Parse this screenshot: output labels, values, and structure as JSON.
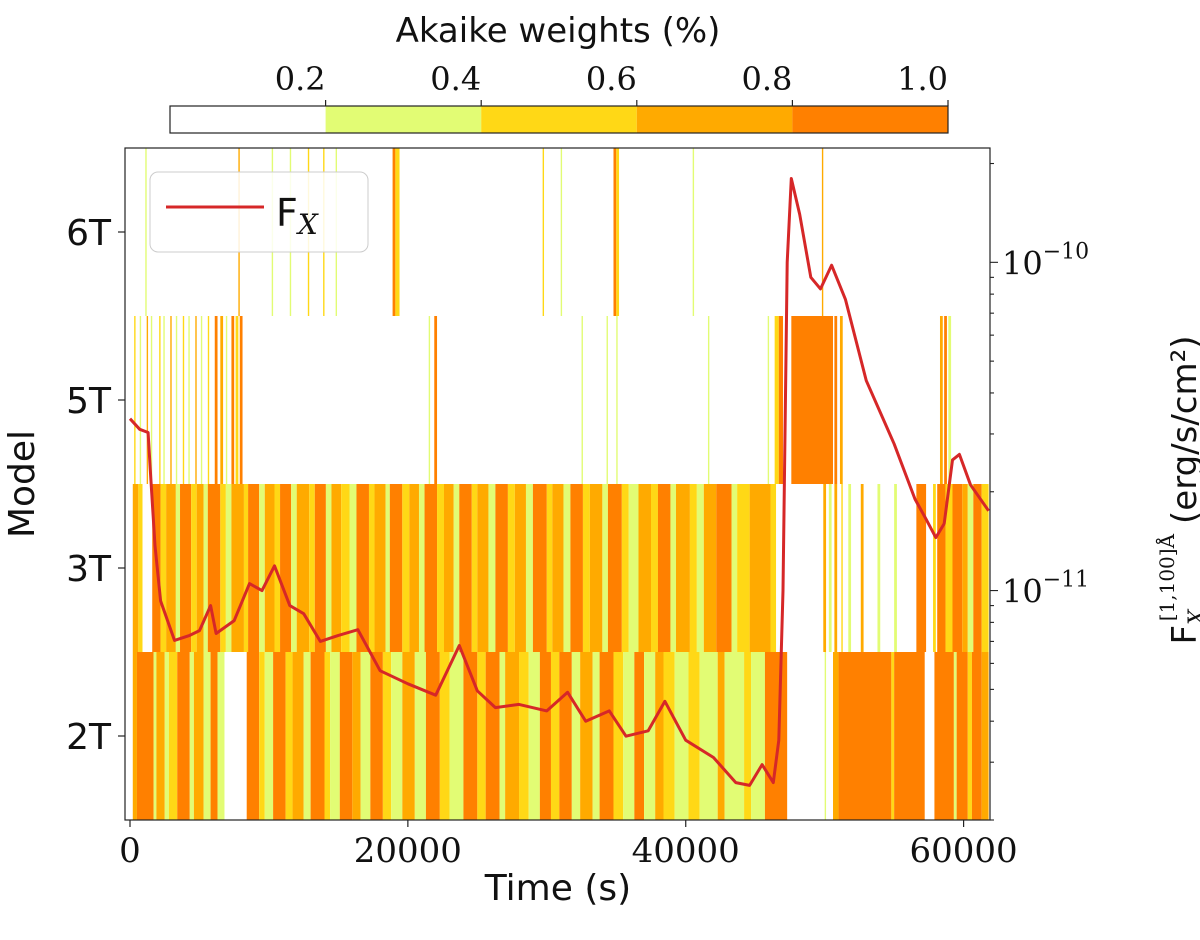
{
  "chart_data": {
    "type": "heatmap",
    "xlabel": "Time (s)",
    "ylabel": "Model",
    "y2label": "F_X^{[1,100]Å} (erg/s/cm²)",
    "y2label_main": "F",
    "y2label_sub": "X",
    "y2label_sup": "[1,100]Å",
    "y2label_units": "(erg/s/cm²)",
    "xlim": [
      -360,
      61900
    ],
    "x_ticks": [
      0,
      20000,
      40000,
      60000
    ],
    "x_tick_labels": [
      "0",
      "20000",
      "40000",
      "60000"
    ],
    "models": [
      "6T",
      "5T",
      "3T",
      "2T"
    ],
    "y2_scale": "log",
    "y2lim": [
      2e-12,
      2.23e-10
    ],
    "y2_ticks": [
      {
        "value": 1e-10,
        "base": "10",
        "exp": "−10"
      },
      {
        "value": 1e-11,
        "base": "10",
        "exp": "−11"
      }
    ],
    "colorbar": {
      "title": "Akaike weights (%)",
      "bounds": [
        0,
        0.2,
        0.4,
        0.6,
        0.8,
        1.0
      ],
      "tick_labels": [
        "0.2",
        "0.4",
        "0.6",
        "0.8",
        "1.0"
      ],
      "colors": [
        "#ffffff",
        "#e2fc74",
        "#ffd816",
        "#ffaa00",
        "#ff8000"
      ],
      "placement": "top"
    },
    "weights": {
      "6T": [
        [
          1100,
          1200,
          0.3
        ],
        [
          7800,
          7900,
          0.7
        ],
        [
          10200,
          10300,
          0.3
        ],
        [
          11500,
          11600,
          0.3
        ],
        [
          12800,
          12900,
          0.5
        ],
        [
          13900,
          14000,
          0.5
        ],
        [
          14800,
          14900,
          0.3
        ],
        [
          18900,
          19100,
          0.9
        ],
        [
          19100,
          19400,
          0.5
        ],
        [
          29700,
          29800,
          0.5
        ],
        [
          31000,
          31100,
          0.3
        ],
        [
          34800,
          35000,
          0.9
        ],
        [
          35000,
          35200,
          0.5
        ],
        [
          40500,
          40600,
          0.3
        ],
        [
          49800,
          49900,
          0.7
        ]
      ],
      "5T": [
        [
          300,
          400,
          0.5
        ],
        [
          700,
          800,
          0.3
        ],
        [
          1200,
          1300,
          0.7
        ],
        [
          1500,
          1600,
          0.3
        ],
        [
          2100,
          2200,
          0.5
        ],
        [
          2400,
          2500,
          0.3
        ],
        [
          2900,
          3000,
          0.7
        ],
        [
          3300,
          3400,
          0.3
        ],
        [
          3800,
          3900,
          0.5
        ],
        [
          4200,
          4300,
          0.3
        ],
        [
          4700,
          4800,
          0.7
        ],
        [
          5100,
          5200,
          0.3
        ],
        [
          5600,
          5700,
          0.5
        ],
        [
          6100,
          6300,
          0.9
        ],
        [
          6500,
          6700,
          0.7
        ],
        [
          6900,
          7000,
          0.3
        ],
        [
          7300,
          7500,
          0.9
        ],
        [
          7600,
          7800,
          0.5
        ],
        [
          7900,
          8100,
          0.9
        ],
        [
          21500,
          21600,
          0.3
        ],
        [
          21900,
          22100,
          0.9
        ],
        [
          32500,
          32600,
          0.3
        ],
        [
          34300,
          34400,
          0.3
        ],
        [
          35000,
          35100,
          0.3
        ],
        [
          41600,
          41700,
          0.3
        ],
        [
          45900,
          46000,
          0.3
        ],
        [
          46400,
          46700,
          0.5
        ],
        [
          46700,
          47000,
          0.9
        ],
        [
          47600,
          50600,
          0.9
        ],
        [
          50700,
          50900,
          0.9
        ],
        [
          51100,
          51300,
          0.7
        ],
        [
          58300,
          58500,
          0.7
        ],
        [
          58600,
          58800,
          0.9
        ],
        [
          58900,
          59100,
          0.3
        ]
      ],
      "3T": [
        [
          200,
          600,
          0.7
        ],
        [
          600,
          900,
          0.5
        ],
        [
          1600,
          2200,
          0.9
        ],
        [
          2200,
          2600,
          0.5
        ],
        [
          2600,
          3300,
          0.7
        ],
        [
          3300,
          3600,
          0.3
        ],
        [
          3600,
          4400,
          0.9
        ],
        [
          4400,
          4800,
          0.5
        ],
        [
          4800,
          5300,
          0.7
        ],
        [
          5300,
          5600,
          0.3
        ],
        [
          5600,
          6500,
          0.9
        ],
        [
          6500,
          6900,
          0.5
        ],
        [
          6900,
          7300,
          0.3
        ],
        [
          7300,
          8200,
          0.7
        ],
        [
          8200,
          8500,
          0.5
        ],
        [
          8500,
          9300,
          0.9
        ],
        [
          9300,
          9700,
          0.3
        ],
        [
          9700,
          10400,
          0.7
        ],
        [
          10400,
          10800,
          0.5
        ],
        [
          10800,
          11600,
          0.9
        ],
        [
          11600,
          12000,
          0.3
        ],
        [
          12000,
          12900,
          0.7
        ],
        [
          12900,
          13300,
          0.5
        ],
        [
          13300,
          14100,
          0.9
        ],
        [
          14100,
          14500,
          0.3
        ],
        [
          14500,
          15200,
          0.7
        ],
        [
          15200,
          15800,
          0.5
        ],
        [
          15800,
          16300,
          0.3
        ],
        [
          16300,
          17200,
          0.9
        ],
        [
          17200,
          17600,
          0.5
        ],
        [
          17600,
          18400,
          0.7
        ],
        [
          18400,
          18700,
          0.3
        ],
        [
          18700,
          19600,
          0.9
        ],
        [
          19600,
          20100,
          0.5
        ],
        [
          20100,
          20800,
          0.7
        ],
        [
          20800,
          21200,
          0.3
        ],
        [
          21200,
          22100,
          0.9
        ],
        [
          22100,
          22600,
          0.5
        ],
        [
          22600,
          23300,
          0.7
        ],
        [
          23300,
          23700,
          0.3
        ],
        [
          23700,
          24600,
          0.9
        ],
        [
          24600,
          25000,
          0.5
        ],
        [
          25000,
          25800,
          0.7
        ],
        [
          25800,
          26300,
          0.3
        ],
        [
          26300,
          27200,
          0.9
        ],
        [
          27200,
          27700,
          0.5
        ],
        [
          27700,
          28500,
          0.7
        ],
        [
          28500,
          29000,
          0.3
        ],
        [
          29000,
          30000,
          0.9
        ],
        [
          30000,
          30400,
          0.5
        ],
        [
          30400,
          31200,
          0.7
        ],
        [
          31200,
          31700,
          0.3
        ],
        [
          31700,
          32600,
          0.9
        ],
        [
          32600,
          33100,
          0.5
        ],
        [
          33100,
          34000,
          0.7
        ],
        [
          34000,
          34400,
          0.3
        ],
        [
          34400,
          35400,
          0.9
        ],
        [
          35400,
          35900,
          0.5
        ],
        [
          35900,
          36600,
          0.3
        ],
        [
          36600,
          37500,
          0.7
        ],
        [
          37500,
          38000,
          0.5
        ],
        [
          38000,
          38900,
          0.9
        ],
        [
          38900,
          39300,
          0.3
        ],
        [
          39300,
          40300,
          0.7
        ],
        [
          40300,
          40800,
          0.5
        ],
        [
          40800,
          41300,
          0.3
        ],
        [
          41300,
          42200,
          0.7
        ],
        [
          42200,
          43300,
          0.9
        ],
        [
          43300,
          43700,
          0.3
        ],
        [
          43700,
          44600,
          0.5
        ],
        [
          44600,
          46100,
          0.7
        ],
        [
          46100,
          46500,
          0.5
        ],
        [
          49900,
          50100,
          0.7
        ],
        [
          50300,
          50500,
          0.3
        ],
        [
          50700,
          50900,
          0.7
        ],
        [
          51200,
          51300,
          0.5
        ],
        [
          51700,
          51900,
          0.3
        ],
        [
          52600,
          52800,
          0.7
        ],
        [
          53800,
          54000,
          0.3
        ],
        [
          55000,
          55200,
          0.3
        ],
        [
          56600,
          57300,
          0.9
        ],
        [
          57800,
          58000,
          0.5
        ],
        [
          58100,
          58700,
          0.9
        ],
        [
          58700,
          59200,
          0.5
        ],
        [
          59200,
          59900,
          0.9
        ],
        [
          59900,
          60300,
          0.7
        ],
        [
          60300,
          60700,
          0.3
        ],
        [
          60700,
          61300,
          0.9
        ],
        [
          61300,
          61800,
          0.5
        ]
      ],
      "2T": [
        [
          200,
          500,
          0.7
        ],
        [
          500,
          1700,
          0.9
        ],
        [
          1700,
          1900,
          0.3
        ],
        [
          1900,
          2500,
          0.7
        ],
        [
          2500,
          2800,
          0.3
        ],
        [
          2800,
          3400,
          0.5
        ],
        [
          3400,
          4300,
          0.9
        ],
        [
          4300,
          4600,
          0.3
        ],
        [
          4600,
          5300,
          0.7
        ],
        [
          5300,
          5800,
          0.3
        ],
        [
          5800,
          6300,
          0.9
        ],
        [
          6300,
          6800,
          0.3
        ],
        [
          8400,
          9300,
          0.9
        ],
        [
          9300,
          9700,
          0.5
        ],
        [
          9700,
          10300,
          0.3
        ],
        [
          10300,
          11200,
          0.9
        ],
        [
          11200,
          11700,
          0.5
        ],
        [
          11700,
          12500,
          0.7
        ],
        [
          12500,
          13000,
          0.3
        ],
        [
          13000,
          14000,
          0.9
        ],
        [
          14000,
          14400,
          0.5
        ],
        [
          14400,
          15100,
          0.3
        ],
        [
          15100,
          16000,
          0.9
        ],
        [
          16000,
          16600,
          0.7
        ],
        [
          16600,
          17300,
          0.3
        ],
        [
          17300,
          18200,
          0.9
        ],
        [
          18200,
          18800,
          0.5
        ],
        [
          18800,
          19600,
          0.3
        ],
        [
          19600,
          20500,
          0.7
        ],
        [
          20500,
          21300,
          0.3
        ],
        [
          21300,
          22300,
          0.9
        ],
        [
          22300,
          23000,
          0.5
        ],
        [
          23000,
          24000,
          0.3
        ],
        [
          24000,
          25000,
          0.9
        ],
        [
          25000,
          25600,
          0.5
        ],
        [
          25600,
          26600,
          0.9
        ],
        [
          26600,
          27000,
          0.3
        ],
        [
          27000,
          28000,
          0.7
        ],
        [
          28000,
          28700,
          0.5
        ],
        [
          28700,
          29500,
          0.3
        ],
        [
          29500,
          30300,
          0.9
        ],
        [
          30300,
          30900,
          0.5
        ],
        [
          30900,
          31800,
          0.9
        ],
        [
          31800,
          32400,
          0.3
        ],
        [
          32400,
          33300,
          0.7
        ],
        [
          33300,
          33800,
          0.3
        ],
        [
          33800,
          34800,
          0.9
        ],
        [
          34800,
          35500,
          0.5
        ],
        [
          35500,
          36300,
          0.3
        ],
        [
          36300,
          37000,
          0.9
        ],
        [
          37000,
          37800,
          0.3
        ],
        [
          37800,
          38400,
          0.7
        ],
        [
          38400,
          39200,
          0.5
        ],
        [
          39200,
          40200,
          0.3
        ],
        [
          40200,
          41000,
          0.5
        ],
        [
          41000,
          42300,
          0.3
        ],
        [
          42300,
          42800,
          0.7
        ],
        [
          42800,
          44200,
          0.3
        ],
        [
          44200,
          44700,
          0.5
        ],
        [
          44700,
          45700,
          0.3
        ],
        [
          45700,
          47300,
          0.9
        ],
        [
          50000,
          50100,
          0.3
        ],
        [
          50600,
          51000,
          0.7
        ],
        [
          51000,
          54800,
          0.9
        ],
        [
          54800,
          55000,
          0.5
        ],
        [
          55000,
          57200,
          0.9
        ],
        [
          57900,
          59300,
          0.9
        ],
        [
          59300,
          59500,
          0.3
        ],
        [
          59500,
          60300,
          0.9
        ],
        [
          60300,
          60600,
          0.5
        ],
        [
          60600,
          61300,
          0.9
        ],
        [
          61300,
          61800,
          0.7
        ]
      ]
    },
    "series": [
      {
        "name": "F_X",
        "legend_main": "F",
        "legend_sub": "X",
        "color": "#d62728",
        "axis": "right",
        "points": [
          [
            0,
            3.34e-11
          ],
          [
            700,
            3.1e-11
          ],
          [
            1300,
            3.03e-11
          ],
          [
            1500,
            2.2e-11
          ],
          [
            1800,
            1.37e-11
          ],
          [
            2200,
            9.3e-12
          ],
          [
            3200,
            7.05e-12
          ],
          [
            4300,
            7.3e-12
          ],
          [
            5000,
            7.55e-12
          ],
          [
            5800,
            9e-12
          ],
          [
            6200,
            7.4e-12
          ],
          [
            7500,
            8.1e-12
          ],
          [
            8600,
            1.05e-11
          ],
          [
            9500,
            1e-11
          ],
          [
            10400,
            1.19e-11
          ],
          [
            11500,
            9e-12
          ],
          [
            12500,
            8.5e-12
          ],
          [
            13700,
            7e-12
          ],
          [
            15000,
            7.3e-12
          ],
          [
            16400,
            7.6e-12
          ],
          [
            18000,
            5.7e-12
          ],
          [
            20000,
            5.2e-12
          ],
          [
            22000,
            4.8e-12
          ],
          [
            23700,
            6.8e-12
          ],
          [
            25000,
            4.95e-12
          ],
          [
            26300,
            4.4e-12
          ],
          [
            28000,
            4.5e-12
          ],
          [
            30000,
            4.3e-12
          ],
          [
            31500,
            4.9e-12
          ],
          [
            32800,
            4e-12
          ],
          [
            34500,
            4.3e-12
          ],
          [
            35700,
            3.6e-12
          ],
          [
            37300,
            3.74e-12
          ],
          [
            38500,
            4.6e-12
          ],
          [
            40000,
            3.5e-12
          ],
          [
            42000,
            3.1e-12
          ],
          [
            43600,
            2.6e-12
          ],
          [
            44600,
            2.55e-12
          ],
          [
            45500,
            2.95e-12
          ],
          [
            46300,
            2.6e-12
          ],
          [
            46700,
            3.5e-12
          ],
          [
            47000,
            1e-11
          ],
          [
            47300,
            1e-10
          ],
          [
            47600,
            1.8e-10
          ],
          [
            48200,
            1.4e-10
          ],
          [
            49000,
            9e-11
          ],
          [
            49700,
            8.3e-11
          ],
          [
            50500,
            9.8e-11
          ],
          [
            51500,
            7.7e-11
          ],
          [
            53000,
            4.36e-11
          ],
          [
            55000,
            2.8e-11
          ],
          [
            56500,
            1.9e-11
          ],
          [
            57300,
            1.65e-11
          ],
          [
            58000,
            1.45e-11
          ],
          [
            58600,
            1.6e-11
          ],
          [
            59200,
            2.5e-11
          ],
          [
            59700,
            2.6e-11
          ],
          [
            60500,
            2.1e-11
          ],
          [
            61800,
            1.75e-11
          ]
        ]
      }
    ],
    "legend_placement": "top-left",
    "grid": false
  }
}
